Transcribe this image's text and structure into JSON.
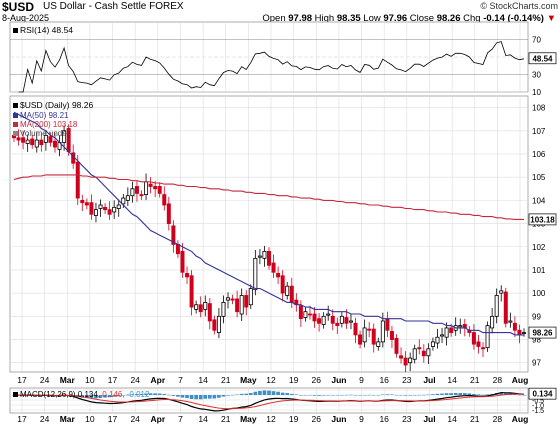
{
  "header": {
    "symbol": "$USD",
    "description": "US Dollar - Cash Settle FOREX",
    "date": "8-Aug-2025",
    "copyright": "© StockCharts.com",
    "open_label": "Open",
    "open": "97.98",
    "high_label": "High",
    "high": "98.35",
    "low_label": "Low",
    "low": "97.96",
    "close_label": "Close",
    "close": "98.26",
    "chg_label": "Chg",
    "chg": "-0.14 (-0.14%)",
    "down_marker": "▼"
  },
  "colors": {
    "up": "#000000",
    "down": "#d0001c",
    "ma50": "#33339a",
    "ma200": "#c8283c",
    "macd_line": "#000000",
    "signal_line": "#e03030",
    "histogram": "#3d8fc6",
    "last_tag_bg": "#ffffff"
  },
  "rsi_panel": {
    "label": "RSI(14) 48.54",
    "last_tag": "48.54",
    "ticks": [
      "70",
      "50",
      "30",
      "10"
    ]
  },
  "price_panel": {
    "title": "$USD (Daily) 98.26",
    "legend": [
      {
        "text": "MA(50) 98.21",
        "color": "#33339a"
      },
      {
        "text": "MA(200) 103.18",
        "color": "#c8283c"
      },
      {
        "text": "Volume undef",
        "color": "#888888"
      }
    ],
    "last_tag": "98.26",
    "ma200_tag": "103.18",
    "ticks": [
      "108",
      "107",
      "106",
      "105",
      "104",
      "103",
      "102",
      "101",
      "100",
      "99",
      "98",
      "97"
    ]
  },
  "macd_panel": {
    "label_prefix": "MACD(12,26,9)",
    "macd": "0.134",
    "signal": "0.146",
    "hist": "-0.012",
    "last_tag": "0.134",
    "ticks": [
      "0.5",
      "0.0",
      "-0.5",
      "-1.0",
      "-1.5"
    ]
  },
  "x_axis": {
    "labels": [
      {
        "text": "17",
        "bold": false
      },
      {
        "text": "24",
        "bold": false
      },
      {
        "text": "Mar",
        "bold": true
      },
      {
        "text": "10",
        "bold": false
      },
      {
        "text": "17",
        "bold": false
      },
      {
        "text": "24",
        "bold": false
      },
      {
        "text": "Apr",
        "bold": true
      },
      {
        "text": "7",
        "bold": false
      },
      {
        "text": "14",
        "bold": false
      },
      {
        "text": "21",
        "bold": false
      },
      {
        "text": "May",
        "bold": true
      },
      {
        "text": "12",
        "bold": false
      },
      {
        "text": "19",
        "bold": false
      },
      {
        "text": "26",
        "bold": false
      },
      {
        "text": "Jun",
        "bold": true
      },
      {
        "text": "9",
        "bold": false
      },
      {
        "text": "16",
        "bold": false
      },
      {
        "text": "23",
        "bold": false
      },
      {
        "text": "Jul",
        "bold": true
      },
      {
        "text": "14",
        "bold": false
      },
      {
        "text": "21",
        "bold": false
      },
      {
        "text": "28",
        "bold": false
      },
      {
        "text": "Aug",
        "bold": true
      }
    ]
  },
  "chart_data": {
    "type": "candlestick",
    "title": "$USD (Daily) 98.26",
    "period": "2025-02-14 to 2025-08-08",
    "ylim_price": [
      96.6,
      108.5
    ],
    "ylim_rsi": [
      10,
      90
    ],
    "ylim_macd": [
      -1.8,
      0.7
    ],
    "grid": true,
    "close": [
      106.7,
      106.6,
      106.5,
      106.6,
      106.4,
      106.6,
      106.4,
      106.8,
      106.5,
      106.3,
      106.5,
      107.0,
      106.1,
      105.6,
      104.1,
      103.9,
      103.8,
      103.4,
      103.6,
      103.8,
      103.6,
      103.4,
      103.7,
      103.8,
      104.1,
      104.2,
      104.5,
      104.3,
      104.2,
      104.8,
      104.6,
      104.5,
      104.3,
      103.8,
      103.0,
      102.1,
      101.7,
      100.9,
      100.7,
      99.4,
      99.5,
      99.2,
      99.6,
      98.8,
      98.4,
      99.0,
      99.6,
      99.8,
      99.7,
      99.2,
      99.9,
      99.4,
      100.2,
      101.5,
      101.6,
      101.8,
      101.2,
      100.9,
      100.7,
      100.0,
      100.3,
      99.6,
      99.5,
      98.9,
      99.2,
      99.1,
      98.8,
      98.7,
      99.0,
      99.1,
      98.7,
      98.6,
      99.0,
      98.7,
      98.8,
      98.2,
      97.8,
      98.5,
      98.4,
      97.8,
      97.9,
      98.8,
      98.4,
      98.0,
      97.4,
      97.2,
      96.9,
      97.2,
      97.6,
      97.6,
      97.3,
      97.6,
      97.9,
      98.1,
      98.2,
      98.5,
      98.3,
      98.6,
      98.6,
      98.5,
      98.3,
      97.8,
      97.7,
      97.6,
      98.6,
      99.0,
      99.9,
      100.1,
      98.7,
      98.8,
      98.4,
      98.2,
      98.3
    ],
    "ma50": [
      107.8,
      107.7,
      107.6,
      107.5,
      107.4,
      107.3,
      107.1,
      107.0,
      106.8,
      106.7,
      106.5,
      106.3,
      106.1,
      105.9,
      105.7,
      105.5,
      105.3,
      105.1,
      105.0,
      104.8,
      104.6,
      104.4,
      104.2,
      104.0,
      103.8,
      103.6,
      103.4,
      103.3,
      103.1,
      102.9,
      102.7,
      102.6,
      102.5,
      102.4,
      102.3,
      102.2,
      102.1,
      102.0,
      101.9,
      101.8,
      101.6,
      101.5,
      101.3,
      101.2,
      101.1,
      101.0,
      100.9,
      100.8,
      100.7,
      100.6,
      100.5,
      100.4,
      100.3,
      100.2,
      100.2,
      100.1,
      100.0,
      99.9,
      99.8,
      99.7,
      99.6,
      99.6,
      99.5,
      99.5,
      99.4,
      99.4,
      99.3,
      99.3,
      99.3,
      99.3,
      99.2,
      99.2,
      99.2,
      99.2,
      99.1,
      99.1,
      99.1,
      99.0,
      99.0,
      99.0,
      99.0,
      98.9,
      98.9,
      98.9,
      98.9,
      98.9,
      98.8,
      98.8,
      98.8,
      98.8,
      98.8,
      98.8,
      98.7,
      98.7,
      98.7,
      98.6,
      98.6,
      98.5,
      98.5,
      98.5,
      98.4,
      98.4,
      98.4,
      98.3,
      98.3,
      98.3,
      98.3,
      98.3,
      98.3,
      98.3,
      98.2,
      98.2,
      98.2
    ],
    "ma200": [
      104.9,
      104.95,
      105.0,
      105.0,
      105.05,
      105.05,
      105.05,
      105.1,
      105.1,
      105.1,
      105.1,
      105.1,
      105.1,
      105.1,
      105.1,
      105.05,
      105.05,
      105.0,
      105.0,
      105.0,
      105.0,
      104.95,
      104.95,
      104.9,
      104.9,
      104.9,
      104.85,
      104.85,
      104.8,
      104.8,
      104.8,
      104.75,
      104.75,
      104.7,
      104.7,
      104.7,
      104.65,
      104.65,
      104.6,
      104.6,
      104.6,
      104.55,
      104.55,
      104.5,
      104.5,
      104.5,
      104.45,
      104.45,
      104.4,
      104.4,
      104.4,
      104.35,
      104.35,
      104.3,
      104.3,
      104.3,
      104.25,
      104.25,
      104.2,
      104.2,
      104.2,
      104.15,
      104.15,
      104.1,
      104.1,
      104.1,
      104.05,
      104.05,
      104.0,
      104.0,
      104.0,
      103.95,
      103.95,
      103.9,
      103.9,
      103.9,
      103.85,
      103.85,
      103.8,
      103.8,
      103.8,
      103.75,
      103.75,
      103.7,
      103.7,
      103.7,
      103.65,
      103.65,
      103.6,
      103.6,
      103.6,
      103.55,
      103.55,
      103.5,
      103.5,
      103.5,
      103.45,
      103.45,
      103.4,
      103.4,
      103.4,
      103.35,
      103.35,
      103.3,
      103.3,
      103.3,
      103.25,
      103.25,
      103.2,
      103.2,
      103.18,
      103.18,
      103.18
    ],
    "rsi_last": 48.54,
    "macd_last": 0.134,
    "signal_last": 0.146,
    "hist_last": -0.012
  }
}
